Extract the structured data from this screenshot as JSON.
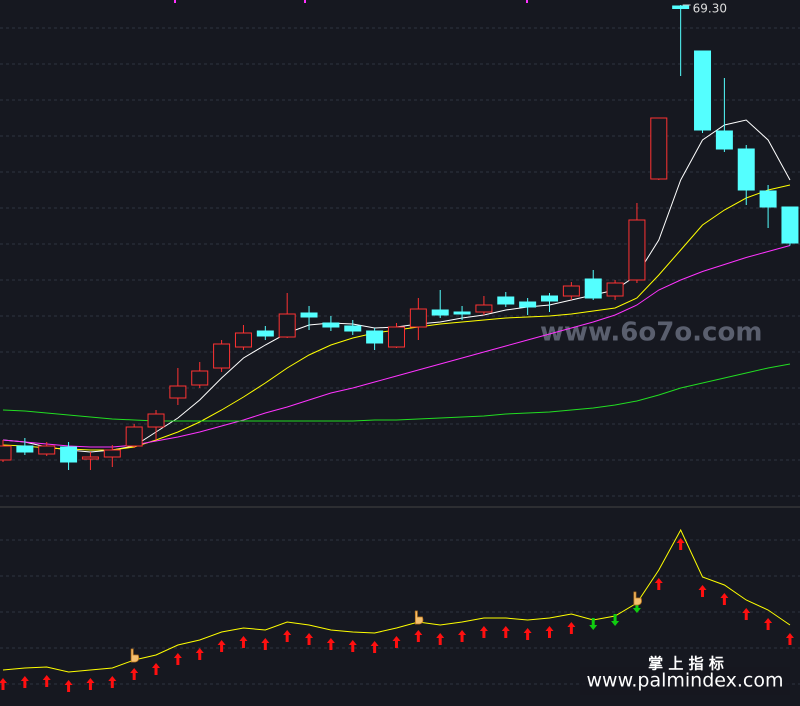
{
  "chart_data": [
    {
      "type": "candlestick",
      "open": [
        32.9,
        34.02,
        33.38,
        33.94,
        32.98,
        33.14,
        34.02,
        35.54,
        37.86,
        38.9,
        40.26,
        41.94,
        43.22,
        42.74,
        44.66,
        43.86,
        43.62,
        43.22,
        41.94,
        43.54,
        44.9,
        44.74,
        44.74,
        45.94,
        45.54,
        46.02,
        46.02,
        47.38,
        46.02,
        47.3,
        55.38,
        69.22,
        65.62,
        59.22,
        57.78,
        54.42,
        53.14
      ],
      "close": [
        34.02,
        33.54,
        34.02,
        32.74,
        33.14,
        33.7,
        35.54,
        36.58,
        38.82,
        40.02,
        42.18,
        43.06,
        42.82,
        44.58,
        44.34,
        43.54,
        43.22,
        42.26,
        43.54,
        44.98,
        44.5,
        44.58,
        45.3,
        45.38,
        45.14,
        45.62,
        46.82,
        45.86,
        47.06,
        52.1,
        60.26,
        69.02,
        59.3,
        57.78,
        54.5,
        53.14,
        50.26
      ],
      "high": [
        34.5,
        34.66,
        34.34,
        34.34,
        33.54,
        34.1,
        35.78,
        36.9,
        40.26,
        40.74,
        42.5,
        43.7,
        43.62,
        46.26,
        45.22,
        44.42,
        44.1,
        43.46,
        43.86,
        45.86,
        46.5,
        45.22,
        46.02,
        46.34,
        45.86,
        46.26,
        47.14,
        48.1,
        47.3,
        53.46,
        60.26,
        69.3,
        65.62,
        63.46,
        58.1,
        54.9,
        53.14
      ],
      "low": [
        32.74,
        33.3,
        33.22,
        32.1,
        32.1,
        32.34,
        33.86,
        34.5,
        37.3,
        38.66,
        39.94,
        41.7,
        42.5,
        42.66,
        43.3,
        43.22,
        42.9,
        41.7,
        41.86,
        42.5,
        44.26,
        44.1,
        44.5,
        45.14,
        44.5,
        44.74,
        45.7,
        45.7,
        45.7,
        47.06,
        55.3,
        63.62,
        59.06,
        57.54,
        53.3,
        51.46,
        50.06
      ],
      "high_labels": [
        null,
        null,
        null,
        null,
        null,
        null,
        null,
        null,
        null,
        null,
        null,
        null,
        null,
        null,
        null,
        null,
        null,
        null,
        null,
        null,
        null,
        null,
        null,
        null,
        null,
        null,
        null,
        null,
        null,
        null,
        null,
        "69.30",
        null,
        null,
        null,
        null,
        null
      ],
      "up_color": "#ff3232",
      "down_color": "#54ffff",
      "ylim": [
        29.7,
        69.7
      ],
      "lines": [
        {
          "color": "#ffffff",
          "values": [
            34.5,
            34.34,
            33.94,
            33.7,
            33.54,
            33.7,
            34.02,
            35.14,
            36.26,
            37.7,
            39.46,
            41.06,
            42.1,
            43.06,
            43.7,
            43.86,
            43.78,
            43.46,
            43.54,
            43.78,
            43.94,
            44.26,
            44.5,
            44.9,
            45.14,
            45.3,
            45.7,
            46.1,
            46.5,
            47.7,
            50.5,
            55.3,
            58.5,
            59.7,
            60.1,
            58.5,
            55.3
          ]
        },
        {
          "color": "#ffff00",
          "values": [
            34.1,
            34.02,
            33.86,
            33.78,
            33.7,
            33.7,
            33.94,
            34.5,
            35.14,
            35.94,
            36.9,
            37.94,
            39.06,
            40.26,
            41.3,
            42.1,
            42.66,
            43.06,
            43.3,
            43.54,
            43.78,
            43.94,
            44.1,
            44.26,
            44.34,
            44.42,
            44.58,
            44.82,
            45.06,
            45.86,
            47.7,
            49.7,
            51.7,
            52.9,
            53.86,
            54.5,
            54.9
          ]
        },
        {
          "color": "#ff33ff",
          "values": [
            34.5,
            34.34,
            34.18,
            34.02,
            33.94,
            33.94,
            34.1,
            34.42,
            34.74,
            35.14,
            35.62,
            36.1,
            36.66,
            37.14,
            37.7,
            38.26,
            38.66,
            39.14,
            39.62,
            40.1,
            40.58,
            41.06,
            41.54,
            42.02,
            42.5,
            42.98,
            43.46,
            43.94,
            44.5,
            45.3,
            46.5,
            47.3,
            47.98,
            48.54,
            49.1,
            49.58,
            50.06
          ]
        },
        {
          "color": "#22dd22",
          "values": [
            36.9,
            36.82,
            36.66,
            36.5,
            36.34,
            36.18,
            36.1,
            36.02,
            36.02,
            36.02,
            36.02,
            36.02,
            36.02,
            36.02,
            36.02,
            36.02,
            36.02,
            36.1,
            36.1,
            36.18,
            36.26,
            36.34,
            36.42,
            36.58,
            36.66,
            36.74,
            36.9,
            37.06,
            37.3,
            37.62,
            38.1,
            38.66,
            39.06,
            39.46,
            39.86,
            40.26,
            40.58
          ]
        }
      ]
    },
    {
      "type": "line",
      "values": [
        15,
        16,
        16.5,
        14,
        15,
        16,
        20,
        22.5,
        27.5,
        30,
        34,
        36,
        35,
        39,
        37.5,
        35,
        34,
        33.5,
        36,
        39,
        37.5,
        39,
        41,
        41,
        40,
        41,
        43,
        40,
        42,
        48.5,
        65,
        85,
        61.5,
        57.5,
        50,
        45,
        37.5
      ],
      "color": "#ffff00",
      "ylim": [
        0,
        100
      ],
      "signals": [
        "up",
        "up",
        "up",
        "up",
        "up",
        "up",
        "up",
        "up",
        "up",
        "up",
        "up",
        "up",
        "up",
        "up",
        "up",
        "up",
        "up",
        "up",
        "up",
        "up",
        "up",
        "up",
        "up",
        "up",
        "up",
        "up",
        "up",
        "down",
        "down",
        "down",
        "up",
        "up",
        "up",
        "up",
        "up",
        "up",
        "up"
      ],
      "hand_marks": [
        6,
        19,
        29
      ],
      "up_color": "#ff1010",
      "down_color": "#10cc10"
    }
  ],
  "watermarks": {
    "site": "www.6o7o.com",
    "brand": "掌 上 指 标",
    "url": "www.palmindex.com"
  }
}
